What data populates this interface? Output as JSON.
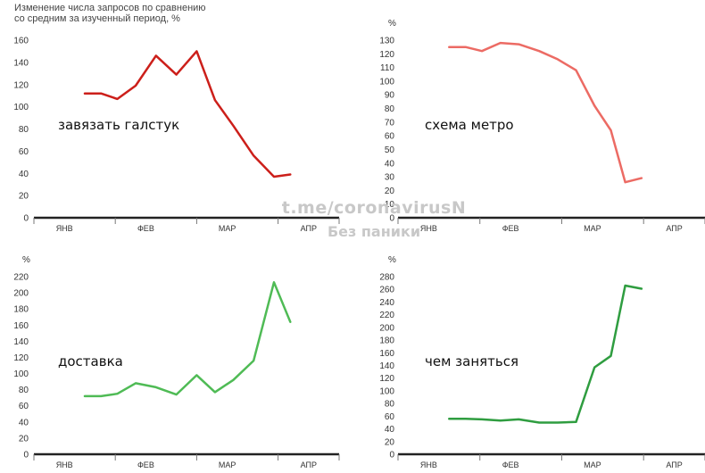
{
  "header": {
    "line1": "Изменение числа запросов по сравнению",
    "line2": "со средним за изученный период, %"
  },
  "watermark": {
    "line1": "t.me/coronavirusN",
    "line2": "Без паники"
  },
  "colors": {
    "panel1": "#cc1f1a",
    "panel2": "#ec6b64",
    "panel3": "#4fbb55",
    "panel4": "#2f9d40",
    "axis": "#222222",
    "tick_text": "#333333"
  },
  "chart_data": [
    {
      "type": "line",
      "title": "завязать галстук",
      "unit_label": "",
      "ylim": [
        0,
        160
      ],
      "yticks": [
        0,
        20,
        40,
        60,
        80,
        100,
        120,
        140,
        160
      ],
      "xlim": [
        0,
        15
      ],
      "xticks": [
        {
          "label": "ЯНВ",
          "pos": 1.5
        },
        {
          "label": "ФЕВ",
          "pos": 5.5
        },
        {
          "label": "МАР",
          "pos": 9.5
        },
        {
          "label": "АПР",
          "pos": 13.5
        }
      ],
      "month_boundaries": [
        0,
        4,
        8,
        12,
        15
      ],
      "series": [
        {
          "x": [
            2.5,
            3.3,
            4.1,
            5.0,
            6.0,
            7.0,
            8.0,
            8.9,
            9.8,
            10.8,
            11.8,
            12.6
          ],
          "values": [
            112,
            112,
            107,
            119,
            146,
            129,
            150,
            106,
            83,
            56,
            37,
            39
          ]
        }
      ]
    },
    {
      "type": "line",
      "title": "схема метро",
      "unit_label": "%",
      "ylim": [
        0,
        130
      ],
      "yticks": [
        0,
        10,
        20,
        30,
        40,
        50,
        60,
        70,
        80,
        90,
        100,
        110,
        120,
        130
      ],
      "xlim": [
        0,
        15
      ],
      "xticks": [
        {
          "label": "ЯНВ",
          "pos": 1.5
        },
        {
          "label": "ФЕВ",
          "pos": 5.5
        },
        {
          "label": "МАР",
          "pos": 9.5
        },
        {
          "label": "АПР",
          "pos": 13.5
        }
      ],
      "month_boundaries": [
        0,
        4,
        8,
        12,
        15
      ],
      "series": [
        {
          "x": [
            2.5,
            3.3,
            4.1,
            5.0,
            5.9,
            6.9,
            7.8,
            8.7,
            9.6,
            10.4,
            11.1,
            11.9
          ],
          "values": [
            125,
            125,
            122,
            128,
            127,
            122,
            116,
            108,
            82,
            64,
            26,
            29
          ]
        }
      ]
    },
    {
      "type": "line",
      "title": "доставка",
      "unit_label": "%",
      "ylim": [
        0,
        220
      ],
      "yticks": [
        0,
        20,
        40,
        60,
        80,
        100,
        120,
        140,
        160,
        180,
        200,
        220
      ],
      "xlim": [
        0,
        15
      ],
      "xticks": [
        {
          "label": "ЯНВ",
          "pos": 1.5
        },
        {
          "label": "ФЕВ",
          "pos": 5.5
        },
        {
          "label": "МАР",
          "pos": 9.5
        },
        {
          "label": "АПР",
          "pos": 13.5
        }
      ],
      "month_boundaries": [
        0,
        4,
        8,
        12,
        15
      ],
      "series": [
        {
          "x": [
            2.5,
            3.3,
            4.1,
            5.0,
            6.0,
            7.0,
            8.0,
            8.9,
            9.8,
            10.8,
            11.8,
            12.6
          ],
          "values": [
            72,
            72,
            75,
            88,
            83,
            74,
            98,
            77,
            92,
            116,
            213,
            164
          ]
        }
      ]
    },
    {
      "type": "line",
      "title": "чем заняться",
      "unit_label": "%",
      "ylim": [
        0,
        280
      ],
      "yticks": [
        0,
        20,
        40,
        60,
        80,
        100,
        120,
        140,
        160,
        180,
        200,
        220,
        240,
        260,
        280
      ],
      "xlim": [
        0,
        15
      ],
      "xticks": [
        {
          "label": "ЯНВ",
          "pos": 1.5
        },
        {
          "label": "ФЕВ",
          "pos": 5.5
        },
        {
          "label": "МАР",
          "pos": 9.5
        },
        {
          "label": "АПР",
          "pos": 13.5
        }
      ],
      "month_boundaries": [
        0,
        4,
        8,
        12,
        15
      ],
      "series": [
        {
          "x": [
            2.5,
            3.3,
            4.1,
            5.0,
            5.9,
            6.9,
            7.8,
            8.7,
            9.6,
            10.4,
            11.1,
            11.9
          ],
          "values": [
            56,
            56,
            55,
            53,
            55,
            50,
            50,
            51,
            137,
            155,
            266,
            261
          ]
        }
      ]
    }
  ]
}
